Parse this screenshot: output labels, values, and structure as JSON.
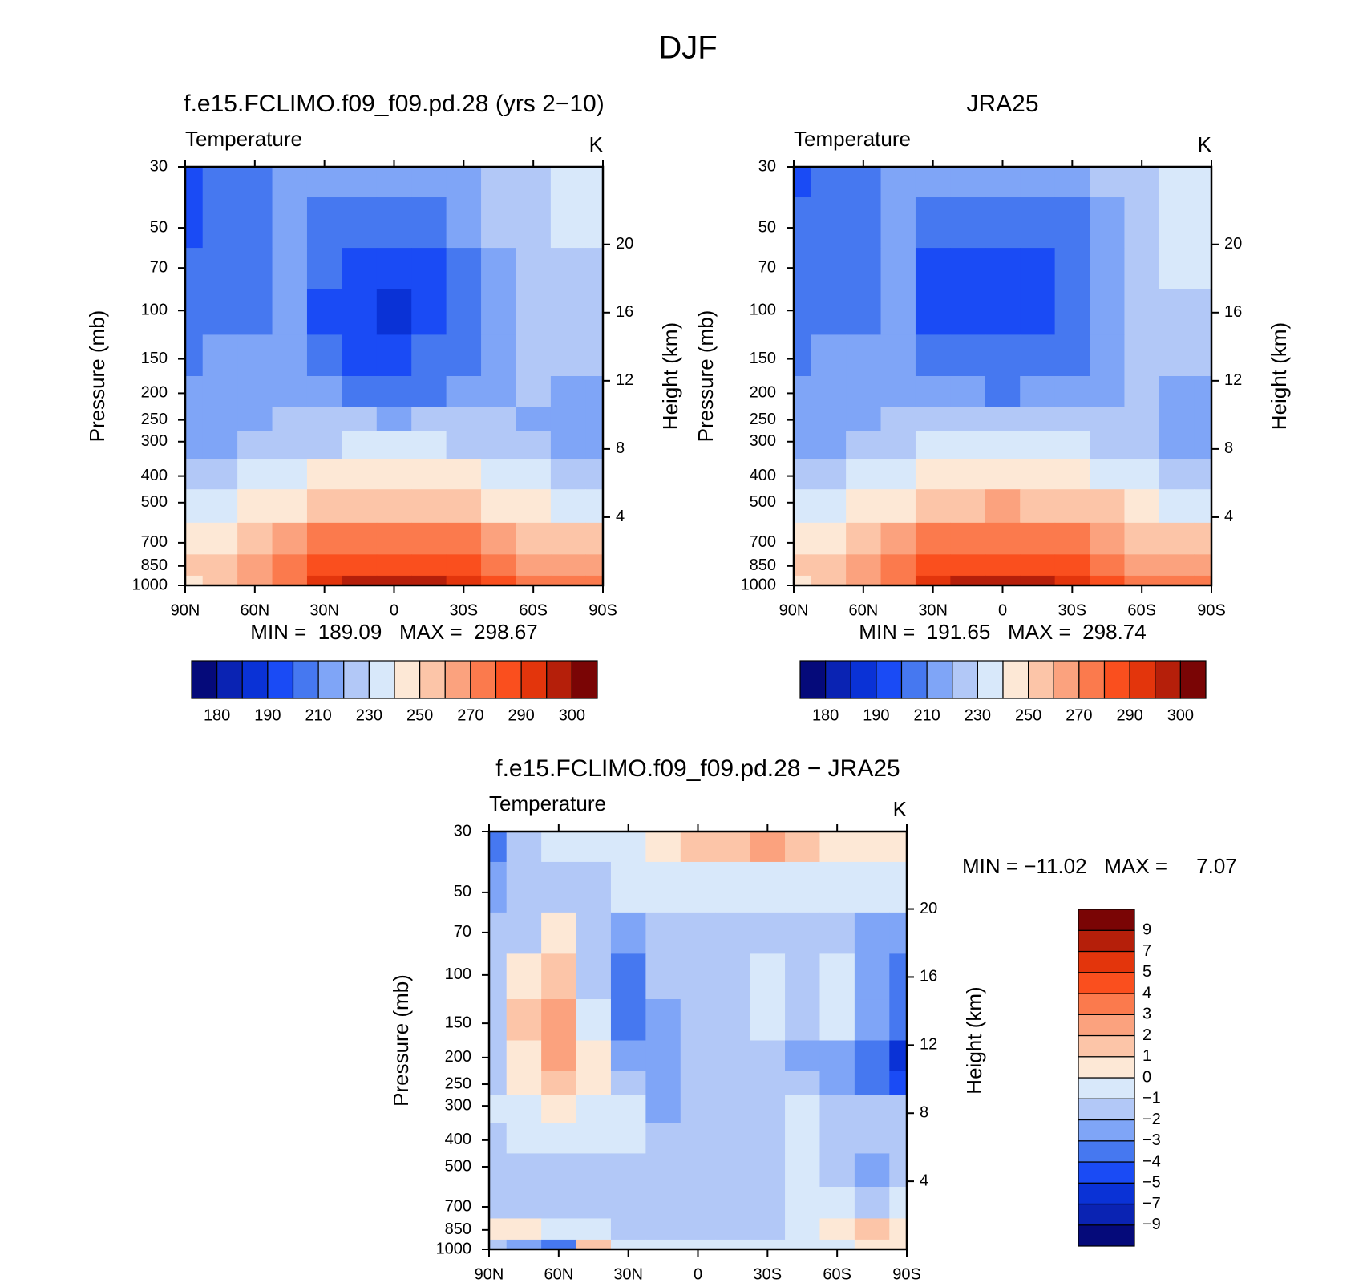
{
  "title": "DJF",
  "chart_data": [
    {
      "type": "contour",
      "title": "f.e15.FCLIMO.f09_f09.pd.28 (yrs 2−10)",
      "left_label": "Temperature",
      "right_label": "K",
      "ylabel": "Pressure (mb)",
      "y2label": "Height (km)",
      "stats": "MIN =  189.09   MAX =  298.67",
      "colorbar": "horizontal",
      "x": [
        90,
        75,
        60,
        45,
        30,
        15,
        0,
        -15,
        -30,
        -45,
        -60,
        -75,
        -90
      ],
      "y": [
        30,
        50,
        70,
        100,
        150,
        200,
        250,
        300,
        400,
        500,
        700,
        850,
        1000
      ],
      "z": [
        [
          195,
          202,
          205,
          213,
          215,
          215,
          215,
          215,
          217,
          222,
          228,
          235,
          236
        ],
        [
          198,
          205,
          206,
          212,
          205,
          205,
          205,
          205,
          210,
          220,
          227,
          233,
          235
        ],
        [
          203,
          205,
          206,
          210,
          200,
          195,
          195,
          195,
          205,
          218,
          225,
          228,
          229
        ],
        [
          205,
          206,
          207,
          210,
          198,
          195,
          188,
          195,
          202,
          216,
          222,
          225,
          226
        ],
        [
          208,
          212,
          213,
          213,
          204,
          198,
          198,
          200,
          206,
          215,
          223,
          222,
          222
        ],
        [
          210,
          215,
          216,
          216,
          212,
          207,
          205,
          207,
          212,
          218,
          222,
          215,
          214
        ],
        [
          215,
          216,
          218,
          220,
          220,
          220,
          219,
          220,
          221,
          220,
          218,
          216,
          215
        ],
        [
          217,
          218,
          220,
          224,
          228,
          230,
          230,
          230,
          228,
          225,
          220,
          218,
          217
        ],
        [
          225,
          227,
          230,
          236,
          242,
          245,
          246,
          245,
          242,
          236,
          230,
          227,
          226
        ],
        [
          233,
          235,
          240,
          248,
          255,
          258,
          259,
          258,
          255,
          249,
          242,
          237,
          236
        ],
        [
          245,
          248,
          253,
          262,
          272,
          276,
          277,
          276,
          272,
          264,
          256,
          251,
          250
        ],
        [
          250,
          253,
          260,
          270,
          281,
          286,
          287,
          286,
          281,
          272,
          265,
          263,
          262
        ],
        [
          247,
          250,
          265,
          278,
          290,
          297,
          298,
          297,
          291,
          280,
          270,
          272,
          274
        ]
      ],
      "xlim": [
        90,
        -90
      ],
      "xticks": [
        {
          "value": 90,
          "label": "90N"
        },
        {
          "value": 60,
          "label": "60N"
        },
        {
          "value": 30,
          "label": "30N"
        },
        0,
        {
          "value": -30,
          "label": "30S"
        },
        {
          "value": -60,
          "label": "60S"
        },
        {
          "value": -90,
          "label": "90S"
        }
      ],
      "ylim": [
        1000,
        30
      ],
      "y_log": true,
      "yticks": [
        30,
        50,
        70,
        100,
        150,
        200,
        250,
        300,
        400,
        500,
        700,
        850,
        1000
      ],
      "y2lim": [
        0,
        24.55
      ],
      "y2ticks": [
        4,
        8,
        12,
        16,
        20
      ],
      "levels": [
        180,
        185,
        190,
        200,
        210,
        220,
        230,
        240,
        250,
        260,
        270,
        280,
        290,
        295,
        300
      ],
      "colorbar_ticks": [
        180,
        190,
        210,
        230,
        250,
        270,
        290,
        300
      ],
      "colors": [
        "#050a7a",
        "#0a23b3",
        "#0a32d6",
        "#1a4bf5",
        "#4678f0",
        "#7fa5f7",
        "#b2c8f7",
        "#d8e8fa",
        "#fde8d6",
        "#fcc5a8",
        "#fba27e",
        "#fb7a4d",
        "#fa4f1e",
        "#e3350c",
        "#b51f0a",
        "#7a0505"
      ]
    },
    {
      "type": "contour",
      "title": "JRA25",
      "left_label": "Temperature",
      "right_label": "K",
      "ylabel": "Pressure (mb)",
      "y2label": "Height (km)",
      "stats": "MIN =  191.65   MAX =  298.74",
      "colorbar": "horizontal",
      "x": [
        90,
        75,
        60,
        45,
        30,
        15,
        0,
        -15,
        -30,
        -45,
        -60,
        -75,
        -90
      ],
      "y": [
        30,
        50,
        70,
        100,
        150,
        200,
        250,
        300,
        400,
        500,
        700,
        850,
        1000
      ],
      "z": [
        [
          197,
          203,
          205,
          212,
          214,
          214,
          213,
          214,
          216,
          221,
          228,
          234,
          235
        ],
        [
          200,
          205,
          206,
          210,
          204,
          203,
          203,
          204,
          209,
          219,
          227,
          232,
          233
        ],
        [
          204,
          206,
          207,
          210,
          198,
          196,
          196,
          196,
          204,
          217,
          225,
          230,
          231
        ],
        [
          206,
          207,
          208,
          210,
          197,
          196,
          195,
          196,
          203,
          216,
          223,
          228,
          229
        ],
        [
          209,
          211,
          212,
          213,
          204,
          201,
          200,
          201,
          207,
          216,
          224,
          226,
          226
        ],
        [
          212,
          215,
          216,
          216,
          214,
          210,
          209,
          210,
          214,
          219,
          224,
          219,
          218
        ],
        [
          216,
          217,
          218,
          220,
          222,
          222,
          221,
          222,
          222,
          221,
          220,
          218,
          217
        ],
        [
          218,
          219,
          221,
          225,
          230,
          232,
          232,
          232,
          230,
          226,
          221,
          218,
          214
        ],
        [
          226,
          228,
          231,
          237,
          243,
          246,
          247,
          246,
          243,
          237,
          231,
          228,
          227
        ],
        [
          234,
          236,
          241,
          249,
          256,
          259,
          260,
          259,
          256,
          250,
          243,
          238,
          237
        ],
        [
          246,
          249,
          254,
          263,
          273,
          277,
          278,
          277,
          273,
          265,
          257,
          252,
          251
        ],
        [
          251,
          254,
          261,
          271,
          282,
          287,
          288,
          287,
          282,
          273,
          266,
          264,
          263
        ],
        [
          249,
          252,
          266,
          279,
          291,
          297,
          298,
          297,
          292,
          281,
          271,
          273,
          275
        ]
      ],
      "xlim": [
        90,
        -90
      ],
      "xticks": [
        {
          "value": 90,
          "label": "90N"
        },
        {
          "value": 60,
          "label": "60N"
        },
        {
          "value": 30,
          "label": "30N"
        },
        0,
        {
          "value": -30,
          "label": "30S"
        },
        {
          "value": -60,
          "label": "60S"
        },
        {
          "value": -90,
          "label": "90S"
        }
      ],
      "ylim": [
        1000,
        30
      ],
      "y_log": true,
      "yticks": [
        30,
        50,
        70,
        100,
        150,
        200,
        250,
        300,
        400,
        500,
        700,
        850,
        1000
      ],
      "y2lim": [
        0,
        24.55
      ],
      "y2ticks": [
        4,
        8,
        12,
        16,
        20
      ],
      "levels": [
        180,
        185,
        190,
        200,
        210,
        220,
        230,
        240,
        250,
        260,
        270,
        280,
        290,
        295,
        300
      ],
      "colorbar_ticks": [
        180,
        190,
        210,
        230,
        250,
        270,
        290,
        300
      ],
      "colors": [
        "#050a7a",
        "#0a23b3",
        "#0a32d6",
        "#1a4bf5",
        "#4678f0",
        "#7fa5f7",
        "#b2c8f7",
        "#d8e8fa",
        "#fde8d6",
        "#fcc5a8",
        "#fba27e",
        "#fb7a4d",
        "#fa4f1e",
        "#e3350c",
        "#b51f0a",
        "#7a0505"
      ]
    },
    {
      "type": "contour",
      "title": "f.e15.FCLIMO.f09_f09.pd.28 − JRA25",
      "left_label": "Temperature",
      "right_label": "K",
      "ylabel": "Pressure (mb)",
      "y2label": "Height (km)",
      "stats": "MIN = −11.02   MAX =     7.07",
      "colorbar": "vertical",
      "x": [
        90,
        75,
        60,
        45,
        30,
        15,
        0,
        -15,
        -30,
        -45,
        -60,
        -75,
        -90
      ],
      "y": [
        30,
        50,
        70,
        100,
        150,
        200,
        250,
        300,
        400,
        500,
        700,
        850,
        1000
      ],
      "z": [
        [
          -4,
          -2,
          -1,
          -1,
          -0.5,
          0.5,
          1,
          1.5,
          2,
          1,
          0.5,
          0.5,
          0.3
        ],
        [
          -3,
          -1.5,
          -1.5,
          -2,
          -1,
          -0.5,
          -0.5,
          -0.3,
          -0.3,
          -0.5,
          -0.5,
          -0.3,
          -0.5
        ],
        [
          -2,
          -1.5,
          0.5,
          -2,
          -3,
          -2,
          -1.5,
          -1.5,
          -2,
          -1.5,
          -1.5,
          -2.5,
          -3
        ],
        [
          -1.5,
          0.5,
          1.5,
          -1.5,
          -3.5,
          -2,
          -1.5,
          -1.5,
          -1,
          -1.5,
          -1,
          -2.5,
          -3.5
        ],
        [
          -1.5,
          1,
          2.5,
          -1,
          -4,
          -2.5,
          -1.5,
          -1.5,
          -1,
          -1.5,
          -0.5,
          -2.5,
          -4
        ],
        [
          -2,
          0.5,
          2,
          0.5,
          -3,
          -2.5,
          -2,
          -2,
          -1.5,
          -2.5,
          -3,
          -4,
          -5.5
        ],
        [
          -2,
          0.3,
          1.5,
          0.3,
          -1.5,
          -2.5,
          -2,
          -2,
          -1.5,
          -1.5,
          -2.5,
          -4,
          -5
        ],
        [
          -1,
          -0.5,
          0.5,
          -0.5,
          -1,
          -2.5,
          -2,
          -2,
          -1.5,
          -0.5,
          -1.5,
          -2,
          -2
        ],
        [
          -1.5,
          -1,
          -1,
          -1,
          -1,
          -1.5,
          -1.5,
          -1.5,
          -1.5,
          -0.5,
          -1.5,
          -2,
          -2
        ],
        [
          -1.5,
          -1.5,
          -1.5,
          -1.5,
          -1.5,
          -1.5,
          -1.5,
          -1.5,
          -1.5,
          -0.5,
          -2,
          -2.5,
          -2
        ],
        [
          -1.5,
          -1.5,
          -1.5,
          -1.5,
          -1.5,
          -1.5,
          -1.5,
          -1.5,
          -1.5,
          -0.5,
          -1,
          -1.5,
          -1
        ],
        [
          0.5,
          0.3,
          -0.5,
          -1,
          -1.5,
          -1.5,
          -1.5,
          -1.5,
          -1.5,
          -1,
          0.3,
          1,
          0.5
        ],
        [
          -2,
          -3,
          -4,
          1.5,
          -0.5,
          -0.5,
          -0.5,
          -0.5,
          -0.8,
          -1,
          -0.5,
          0.5,
          0.3
        ]
      ],
      "xlim": [
        90,
        -90
      ],
      "xticks": [
        {
          "value": 90,
          "label": "90N"
        },
        {
          "value": 60,
          "label": "60N"
        },
        {
          "value": 30,
          "label": "30N"
        },
        0,
        {
          "value": -30,
          "label": "30S"
        },
        {
          "value": -60,
          "label": "60S"
        },
        {
          "value": -90,
          "label": "90S"
        }
      ],
      "ylim": [
        1000,
        30
      ],
      "y_log": true,
      "yticks": [
        30,
        50,
        70,
        100,
        150,
        200,
        250,
        300,
        400,
        500,
        700,
        850,
        1000
      ],
      "y2lim": [
        0,
        24.55
      ],
      "y2ticks": [
        4,
        8,
        12,
        16,
        20
      ],
      "levels": [
        -9,
        -7,
        -5,
        -4,
        -3,
        -2,
        -1,
        0,
        1,
        2,
        3,
        4,
        5,
        7,
        9
      ],
      "colorbar_ticks": [
        {
          "value": -9,
          "label": "−9"
        },
        {
          "value": -7,
          "label": "−7"
        },
        {
          "value": -5,
          "label": "−5"
        },
        {
          "value": -4,
          "label": "−4"
        },
        {
          "value": -3,
          "label": "−3"
        },
        {
          "value": -2,
          "label": "−2"
        },
        {
          "value": -1,
          "label": "−1"
        },
        0,
        1,
        2,
        3,
        4,
        5,
        7,
        9
      ],
      "colors": [
        "#050a7a",
        "#0a23b3",
        "#0a32d6",
        "#1a4bf5",
        "#4678f0",
        "#7fa5f7",
        "#b2c8f7",
        "#d8e8fa",
        "#fde8d6",
        "#fcc5a8",
        "#fba27e",
        "#fb7a4d",
        "#fa4f1e",
        "#e3350c",
        "#b51f0a",
        "#7a0505"
      ]
    }
  ]
}
